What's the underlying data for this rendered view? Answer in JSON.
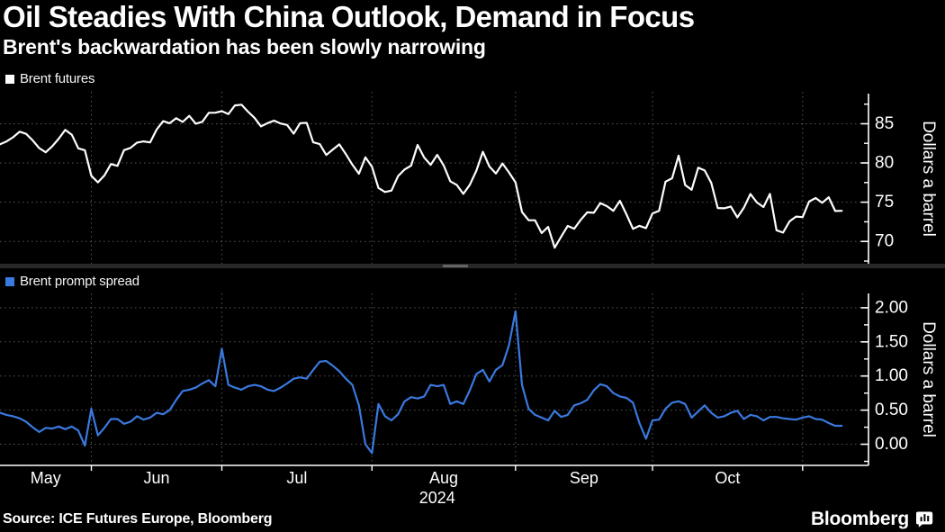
{
  "header": {
    "title": "Oil Steadies With China Outlook, Demand in Focus",
    "subtitle": "Brent's backwardation has been slowly narrowing"
  },
  "footer": {
    "source": "Source: ICE Futures Europe, Bloomberg",
    "brand": "Bloomberg",
    "brand_icon": "bloomberg-chart-bubble-icon"
  },
  "colors": {
    "background": "#000000",
    "text": "#ffffff",
    "gridline": "#565656",
    "divider_bar": "#282828",
    "divider_handle": "#646464",
    "futures_line": "#fdfdfd",
    "spread_line": "#3a79df"
  },
  "chart_data": {
    "type": "line",
    "x_dates": [
      "2024-05-14",
      "2024-05-15",
      "2024-05-16",
      "2024-05-17",
      "2024-05-20",
      "2024-05-21",
      "2024-05-22",
      "2024-05-23",
      "2024-05-24",
      "2024-05-27",
      "2024-05-28",
      "2024-05-29",
      "2024-05-30",
      "2024-05-31",
      "2024-06-03",
      "2024-06-04",
      "2024-06-05",
      "2024-06-06",
      "2024-06-07",
      "2024-06-10",
      "2024-06-11",
      "2024-06-12",
      "2024-06-13",
      "2024-06-14",
      "2024-06-17",
      "2024-06-18",
      "2024-06-19",
      "2024-06-20",
      "2024-06-21",
      "2024-06-24",
      "2024-06-25",
      "2024-06-26",
      "2024-06-27",
      "2024-06-28",
      "2024-07-01",
      "2024-07-02",
      "2024-07-03",
      "2024-07-04",
      "2024-07-05",
      "2024-07-08",
      "2024-07-09",
      "2024-07-10",
      "2024-07-11",
      "2024-07-12",
      "2024-07-15",
      "2024-07-16",
      "2024-07-17",
      "2024-07-18",
      "2024-07-19",
      "2024-07-22",
      "2024-07-23",
      "2024-07-24",
      "2024-07-25",
      "2024-07-26",
      "2024-07-29",
      "2024-07-30",
      "2024-07-31",
      "2024-08-01",
      "2024-08-02",
      "2024-08-05",
      "2024-08-06",
      "2024-08-07",
      "2024-08-08",
      "2024-08-09",
      "2024-08-12",
      "2024-08-13",
      "2024-08-14",
      "2024-08-15",
      "2024-08-16",
      "2024-08-19",
      "2024-08-20",
      "2024-08-21",
      "2024-08-22",
      "2024-08-23",
      "2024-08-26",
      "2024-08-27",
      "2024-08-28",
      "2024-08-29",
      "2024-08-30",
      "2024-09-02",
      "2024-09-03",
      "2024-09-04",
      "2024-09-05",
      "2024-09-06",
      "2024-09-09",
      "2024-09-10",
      "2024-09-11",
      "2024-09-12",
      "2024-09-13",
      "2024-09-16",
      "2024-09-17",
      "2024-09-18",
      "2024-09-19",
      "2024-09-20",
      "2024-09-23",
      "2024-09-24",
      "2024-09-25",
      "2024-09-26",
      "2024-09-27",
      "2024-09-30",
      "2024-10-01",
      "2024-10-02",
      "2024-10-03",
      "2024-10-04",
      "2024-10-07",
      "2024-10-08",
      "2024-10-09",
      "2024-10-10",
      "2024-10-11",
      "2024-10-14",
      "2024-10-15",
      "2024-10-16",
      "2024-10-17",
      "2024-10-18",
      "2024-10-21",
      "2024-10-22",
      "2024-10-23",
      "2024-10-24",
      "2024-10-25",
      "2024-10-28",
      "2024-10-29",
      "2024-10-30",
      "2024-10-31",
      "2024-11-01",
      "2024-11-04",
      "2024-11-05",
      "2024-11-06",
      "2024-11-07",
      "2024-11-08",
      "2024-11-11"
    ],
    "x_axis": {
      "month_tick_labels": [
        "May",
        "Jun",
        "Jul",
        "Aug",
        "Sep",
        "Oct"
      ],
      "month_label_center_day": [
        7,
        24,
        45.5,
        68,
        89.5,
        111.5
      ],
      "month_boundary_day": [
        14,
        34,
        57,
        79,
        100,
        123
      ],
      "axis_total_days": 133.1,
      "year_label": "2024",
      "year_label_center_day": 67
    },
    "panels": [
      {
        "legend": "Brent futures",
        "color": "#fdfdfd",
        "ylabel": "Dollars a barrel",
        "ylim": [
          67.15,
          88.84
        ],
        "yticks": [
          70,
          75,
          80,
          85
        ],
        "ytick_labels": [
          "70",
          "75",
          "80",
          "85"
        ],
        "minor_yticks": [
          67.5,
          72.5,
          77.5,
          82.5,
          87.5
        ],
        "values": [
          82.38,
          82.75,
          83.27,
          83.98,
          83.71,
          82.88,
          81.9,
          81.36,
          82.12,
          83.1,
          84.22,
          83.6,
          81.86,
          81.62,
          78.36,
          77.52,
          78.41,
          79.87,
          79.62,
          81.63,
          81.92,
          82.6,
          82.75,
          82.62,
          84.25,
          85.33,
          85.07,
          85.71,
          85.24,
          86.01,
          85.01,
          85.25,
          86.39,
          86.41,
          86.6,
          86.24,
          87.34,
          87.43,
          86.54,
          85.75,
          84.66,
          85.08,
          85.4,
          85.03,
          84.85,
          83.73,
          85.08,
          85.11,
          82.63,
          82.4,
          81.01,
          81.71,
          82.37,
          81.13,
          79.78,
          78.63,
          80.72,
          79.52,
          76.81,
          76.3,
          76.48,
          78.33,
          79.16,
          79.66,
          82.3,
          80.69,
          79.76,
          81.04,
          79.68,
          77.66,
          77.2,
          76.05,
          77.22,
          79.02,
          81.43,
          79.55,
          78.65,
          79.94,
          78.8,
          77.52,
          73.75,
          72.7,
          72.69,
          71.06,
          71.84,
          69.19,
          70.61,
          71.97,
          71.61,
          72.75,
          73.7,
          73.65,
          74.88,
          74.49,
          73.9,
          75.17,
          73.46,
          71.6,
          71.98,
          71.7,
          73.56,
          73.9,
          77.62,
          78.05,
          80.93,
          77.18,
          76.58,
          79.4,
          79.04,
          77.46,
          74.25,
          74.22,
          74.45,
          73.06,
          74.29,
          76.04,
          74.96,
          74.38,
          76.05,
          71.42,
          71.12,
          72.55,
          73.16,
          73.1,
          75.08,
          75.53,
          74.92,
          75.63,
          73.87,
          73.9
        ]
      },
      {
        "legend": "Brent prompt spread",
        "color": "#3a79df",
        "ylabel": "Dollars a barrel",
        "ylim": [
          -0.31,
          2.21
        ],
        "yticks": [
          0,
          0.5,
          1,
          1.5,
          2
        ],
        "ytick_labels": [
          "0.00",
          "0.50",
          "1.00",
          "1.50",
          "2.00"
        ],
        "minor_yticks": [
          -0.25,
          0.25,
          0.75,
          1.25,
          1.75
        ],
        "values": [
          0.46,
          0.43,
          0.41,
          0.38,
          0.33,
          0.25,
          0.18,
          0.24,
          0.23,
          0.26,
          0.22,
          0.26,
          0.2,
          -0.02,
          0.52,
          0.13,
          0.24,
          0.37,
          0.37,
          0.3,
          0.33,
          0.41,
          0.36,
          0.39,
          0.46,
          0.44,
          0.5,
          0.65,
          0.78,
          0.8,
          0.83,
          0.89,
          0.94,
          0.85,
          1.4,
          0.87,
          0.83,
          0.8,
          0.85,
          0.87,
          0.85,
          0.8,
          0.78,
          0.83,
          0.89,
          0.96,
          0.98,
          0.96,
          1.09,
          1.21,
          1.22,
          1.15,
          1.07,
          0.96,
          0.87,
          0.57,
          0.0,
          -0.13,
          0.59,
          0.41,
          0.35,
          0.44,
          0.63,
          0.69,
          0.67,
          0.7,
          0.87,
          0.85,
          0.87,
          0.59,
          0.63,
          0.59,
          0.79,
          1.03,
          1.09,
          0.92,
          1.09,
          1.16,
          1.45,
          1.95,
          0.87,
          0.52,
          0.43,
          0.39,
          0.35,
          0.49,
          0.4,
          0.43,
          0.57,
          0.6,
          0.65,
          0.79,
          0.88,
          0.85,
          0.75,
          0.7,
          0.68,
          0.61,
          0.31,
          0.08,
          0.35,
          0.36,
          0.52,
          0.61,
          0.63,
          0.59,
          0.39,
          0.48,
          0.57,
          0.46,
          0.39,
          0.41,
          0.46,
          0.49,
          0.37,
          0.43,
          0.41,
          0.35,
          0.4,
          0.4,
          0.38,
          0.37,
          0.36,
          0.39,
          0.41,
          0.37,
          0.36,
          0.31,
          0.27,
          0.27
        ]
      }
    ]
  }
}
